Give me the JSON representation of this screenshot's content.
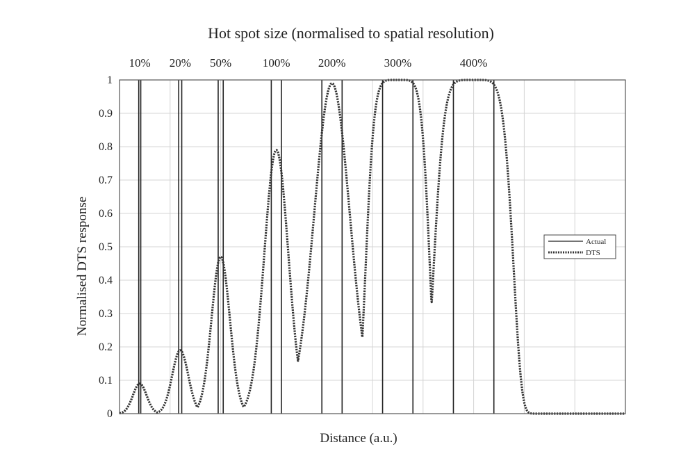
{
  "chart_data": {
    "type": "line",
    "title": "Hot spot size (normalised to spatial resolution)",
    "xlabel": "Distance (a.u.)",
    "ylabel": "Normalised DTS response",
    "ylim": [
      0,
      1
    ],
    "xlim": [
      0,
      100
    ],
    "yticks": [
      "0",
      "0.1",
      "0.2",
      "0.3",
      "0.4",
      "0.5",
      "0.6",
      "0.7",
      "0.8",
      "0.9",
      "1"
    ],
    "xgrid": [
      10,
      20,
      30,
      40,
      50,
      60,
      70,
      80,
      90
    ],
    "grid": true,
    "legend_position": "right",
    "hotspots": [
      {
        "label": "10%",
        "start": 3.8,
        "end": 4.2,
        "peak": 0.09,
        "dts_center": 4.0,
        "dts_width": 2.4
      },
      {
        "label": "20%",
        "start": 11.7,
        "end": 12.3,
        "peak": 0.19,
        "dts_center": 12.0,
        "dts_width": 2.8
      },
      {
        "label": "50%",
        "start": 19.5,
        "end": 20.5,
        "peak": 0.47,
        "dts_center": 20.0,
        "dts_width": 3.2
      },
      {
        "label": "100%",
        "start": 30.0,
        "end": 32.0,
        "peak": 0.79,
        "dts_center": 31.0,
        "dts_width": 4.2
      },
      {
        "label": "200%",
        "start": 40.0,
        "end": 44.0,
        "peak": 0.99,
        "dts_center": 42.0,
        "dts_width": 6.2
      },
      {
        "label": "300%",
        "start": 52.0,
        "end": 58.0,
        "peak": 1.0,
        "dts_center": 55.0,
        "dts_width": 8.2
      },
      {
        "label": "400%",
        "start": 66.0,
        "end": 74.0,
        "peak": 1.0,
        "dts_center": 70.0,
        "dts_width": 10.2
      }
    ],
    "series": [
      {
        "name": "Actual",
        "style": "solid",
        "color": "#222222"
      },
      {
        "name": "DTS",
        "style": "dotted",
        "color": "#333333"
      }
    ]
  }
}
